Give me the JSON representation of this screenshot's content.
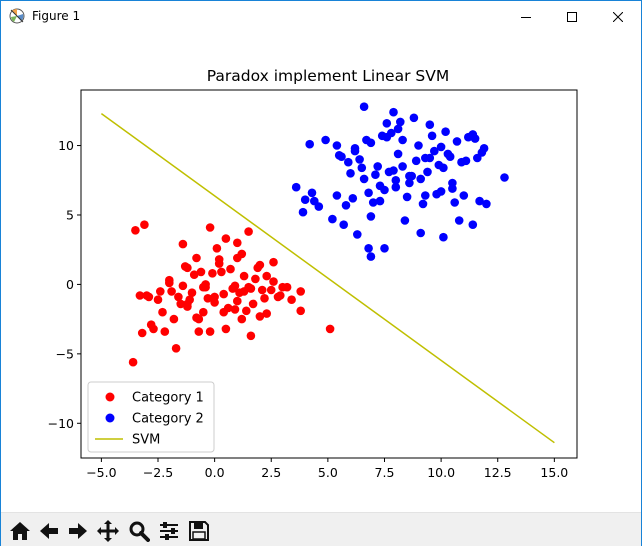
{
  "window": {
    "title": "Figure 1",
    "controls": [
      "minimize",
      "maximize",
      "close"
    ]
  },
  "colors": {
    "category1": "#ff0000",
    "category2": "#0000ff",
    "svm_line": "#bfbf00",
    "window_border": "#1883d7",
    "toolbar_bg": "#f0f0f0"
  },
  "toolbar": {
    "buttons": [
      {
        "icon": "home-icon"
      },
      {
        "icon": "back-arrow-icon"
      },
      {
        "icon": "forward-arrow-icon"
      },
      {
        "icon": "pan-icon"
      },
      {
        "icon": "zoom-icon"
      },
      {
        "icon": "configure-subplots-icon"
      },
      {
        "icon": "save-icon"
      }
    ]
  },
  "chart_data": {
    "type": "scatter",
    "title": "Paradox implement Linear SVM",
    "xlabel": "",
    "ylabel": "",
    "xlim": [
      -5.9,
      16.0
    ],
    "ylim": [
      -12.5,
      14.0
    ],
    "xticks": [
      -5.0,
      -2.5,
      0.0,
      2.5,
      5.0,
      7.5,
      10.0,
      12.5,
      15.0
    ],
    "xtick_labels": [
      "−5.0",
      "−2.5",
      "0.0",
      "2.5",
      "5.0",
      "7.5",
      "10.0",
      "12.5",
      "15.0"
    ],
    "yticks": [
      -10,
      -5,
      0,
      5,
      10
    ],
    "ytick_labels": [
      "−10",
      "−5",
      "0",
      "5",
      "10"
    ],
    "legend_position": "lower-left",
    "legend": [
      {
        "label": "Category 1",
        "kind": "marker"
      },
      {
        "label": "Category 2",
        "kind": "marker"
      },
      {
        "label": "SVM",
        "kind": "line"
      }
    ],
    "series": [
      {
        "name": "Category 1",
        "kind": "scatter",
        "x": [
          -3.5,
          -3.1,
          -2.8,
          -1.4,
          -0.2,
          0.5,
          1.0,
          1.5,
          -0.8,
          0.1,
          1.2,
          2.0,
          -2.0,
          -1.0,
          0.3,
          1.8,
          -3.0,
          -2.5,
          -1.5,
          -0.5,
          0.0,
          1.0,
          2.5,
          3.0,
          -2.3,
          -1.8,
          -1.2,
          -0.7,
          0.6,
          1.4,
          2.2,
          2.9,
          3.8,
          -3.2,
          -2.7,
          -2.2,
          -1.6,
          -1.1,
          -0.3,
          0.4,
          0.9,
          1.6,
          2.1,
          2.8,
          3.4,
          -2.9,
          -2.4,
          -1.3,
          -0.6,
          0.2,
          0.7,
          1.3,
          1.9,
          2.6,
          3.2,
          -1.9,
          -1.4,
          -0.9,
          -0.4,
          0.8,
          1.1,
          1.7,
          2.3,
          -0.2,
          0.5,
          1.2,
          -1.2,
          -0.5,
          0.0,
          2.0,
          -3.3,
          -0.8,
          0.4,
          1.6,
          5.1,
          -2.0,
          3.8,
          -0.4,
          1.5,
          2.3,
          -1.2,
          -0.1,
          1.0,
          2.6,
          0.9,
          -0.7,
          1.3,
          -1.7,
          0.2,
          -3.6
        ],
        "y": [
          3.9,
          4.3,
          -2.9,
          2.9,
          4.1,
          3.3,
          3.0,
          3.8,
          1.9,
          2.6,
          2.2,
          1.4,
          0.1,
          -0.6,
          0.9,
          0.4,
          -0.8,
          -1.1,
          -1.4,
          -0.2,
          -0.9,
          -1.2,
          -0.4,
          -0.2,
          -2.0,
          -2.5,
          -1.4,
          -2.5,
          -1.7,
          -1.9,
          -1.0,
          -0.8,
          -1.9,
          -3.5,
          -3.2,
          -3.4,
          -0.9,
          -1.1,
          -1.0,
          -0.7,
          -0.1,
          -0.3,
          -0.4,
          -0.9,
          -1.1,
          -0.9,
          -0.5,
          1.3,
          0.9,
          1.5,
          1.1,
          0.6,
          1.2,
          0.2,
          -0.2,
          -0.5,
          -0.1,
          0.7,
          -0.2,
          -0.3,
          -0.6,
          -1.4,
          -2.1,
          -3.4,
          -3.2,
          -2.5,
          -1.6,
          -2.0,
          -1.3,
          -2.3,
          -0.8,
          -2.4,
          -2.0,
          -3.7,
          -3.2,
          0.3,
          -0.5,
          0.0,
          -0.2,
          0.6,
          1.2,
          0.8,
          1.9,
          1.6,
          -1.8,
          -3.4,
          -0.5,
          -4.6,
          1.8,
          -5.6
        ]
      },
      {
        "name": "Category 2",
        "kind": "scatter",
        "x": [
          6.6,
          7.9,
          7.6,
          8.2,
          9.6,
          11.2,
          11.5,
          12.8,
          11.9,
          12.0,
          10.8,
          10.1,
          9.1,
          8.4,
          7.5,
          6.9,
          6.3,
          5.7,
          5.2,
          4.6,
          4.0,
          3.9,
          4.3,
          5.4,
          6.1,
          6.8,
          7.3,
          8.0,
          8.6,
          9.3,
          10.0,
          10.5,
          11.0,
          11.7,
          10.3,
          9.5,
          8.9,
          8.3,
          7.7,
          7.1,
          6.5,
          5.9,
          5.5,
          6.2,
          6.9,
          7.6,
          8.3,
          9.0,
          9.7,
          10.4,
          11.1,
          11.8,
          10.9,
          10.1,
          9.4,
          8.7,
          8.0,
          7.3,
          6.6,
          6.0,
          5.6,
          6.4,
          7.2,
          7.9,
          8.6,
          9.3,
          10.0,
          10.7,
          11.4,
          10.2,
          9.5,
          8.8,
          8.1,
          7.4,
          6.7,
          5.4,
          4.2,
          4.9,
          9.1,
          8.5,
          9.8,
          10.6,
          6.8,
          7.0,
          7.5,
          11.4,
          11.6,
          3.6,
          4.4,
          6.2,
          8.1,
          9.2,
          10.5,
          6.9,
          7.8,
          9.9,
          5.8
        ],
        "y": [
          12.8,
          12.4,
          11.6,
          11.7,
          10.7,
          10.6,
          10.5,
          7.7,
          9.8,
          5.8,
          4.6,
          3.4,
          3.7,
          4.6,
          2.6,
          2.0,
          3.6,
          4.3,
          4.7,
          5.6,
          6.1,
          5.2,
          6.6,
          6.4,
          6.2,
          6.6,
          6.0,
          7.0,
          7.3,
          6.4,
          6.7,
          6.9,
          6.4,
          6.0,
          9.4,
          9.1,
          8.9,
          8.5,
          8.1,
          7.9,
          8.4,
          8.8,
          9.3,
          9.8,
          10.2,
          10.6,
          10.4,
          10.0,
          9.6,
          9.2,
          8.9,
          9.5,
          8.8,
          8.4,
          8.1,
          7.8,
          7.5,
          7.1,
          7.6,
          8.0,
          9.2,
          9.0,
          8.5,
          8.2,
          7.8,
          9.1,
          9.9,
          10.3,
          10.8,
          11.0,
          11.5,
          12.0,
          11.2,
          10.7,
          10.4,
          10.0,
          10.1,
          10.4,
          7.6,
          6.3,
          6.5,
          5.9,
          2.6,
          5.9,
          6.8,
          4.3,
          9.1,
          7.0,
          6.0,
          9.6,
          9.4,
          5.8,
          7.3,
          4.9,
          10.9,
          8.6,
          5.7
        ]
      },
      {
        "name": "SVM",
        "kind": "line",
        "x": [
          -5.0,
          15.0
        ],
        "y": [
          12.3,
          -11.4
        ]
      }
    ]
  }
}
